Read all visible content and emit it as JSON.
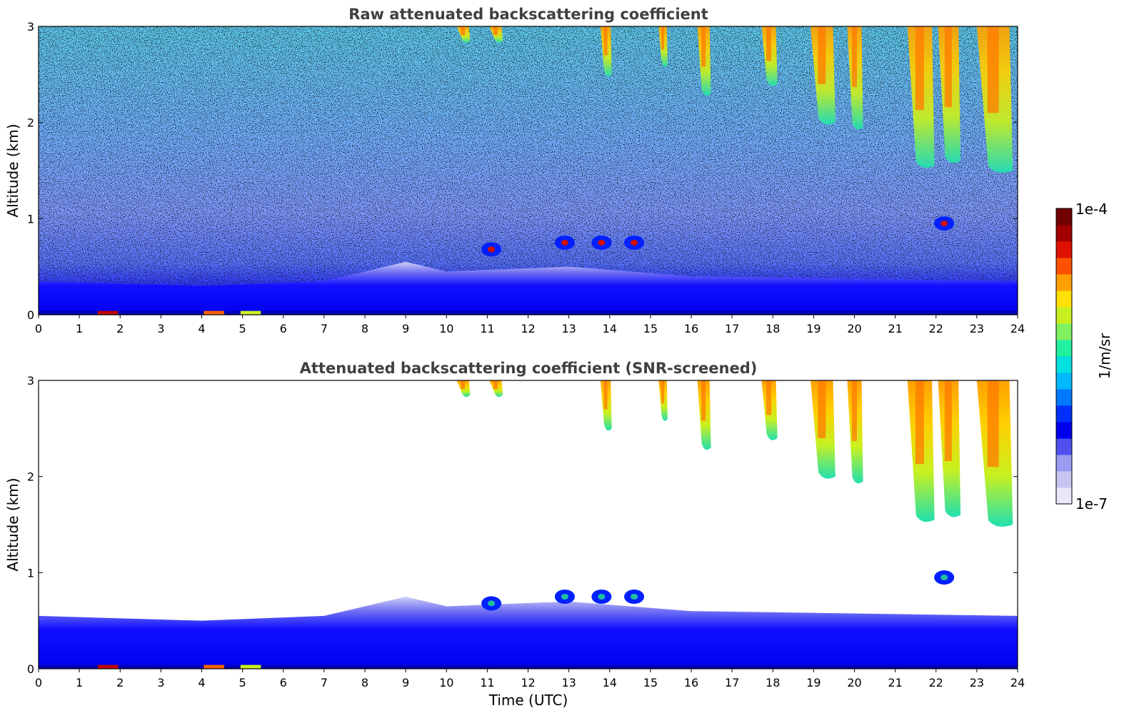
{
  "chart_data": [
    {
      "type": "heatmap",
      "title": "Raw attenuated backscattering coefficient",
      "xlabel": "",
      "ylabel": "Altitude (km)",
      "xlim": [
        0,
        24
      ],
      "ylim": [
        0,
        3
      ],
      "xticks": [
        "0",
        "1",
        "2",
        "3",
        "4",
        "5",
        "6",
        "7",
        "8",
        "9",
        "10",
        "11",
        "12",
        "13",
        "14",
        "15",
        "16",
        "17",
        "18",
        "19",
        "20",
        "21",
        "22",
        "23",
        "24"
      ],
      "yticks": [
        "0",
        "1",
        "2",
        "3"
      ],
      "features": {
        "boundary_layer": [
          {
            "t": 0,
            "top": 0.35
          },
          {
            "t": 4,
            "top": 0.3
          },
          {
            "t": 7,
            "top": 0.35
          },
          {
            "t": 8.5,
            "top": 0.5
          },
          {
            "t": 9,
            "top": 0.55
          },
          {
            "t": 10,
            "top": 0.45
          },
          {
            "t": 13,
            "top": 0.5
          },
          {
            "t": 16,
            "top": 0.4
          },
          {
            "t": 24,
            "top": 0.35
          }
        ],
        "fall_streaks": [
          {
            "t": 10.4,
            "top": 3,
            "bottom": 2.85,
            "w": 0.3
          },
          {
            "t": 11.2,
            "top": 3,
            "bottom": 2.85,
            "w": 0.3
          },
          {
            "t": 13.9,
            "top": 3,
            "bottom": 2.5,
            "w": 0.25
          },
          {
            "t": 15.3,
            "top": 3,
            "bottom": 2.6,
            "w": 0.2
          },
          {
            "t": 16.3,
            "top": 3,
            "bottom": 2.3,
            "w": 0.3
          },
          {
            "t": 17.9,
            "top": 3,
            "bottom": 2.4,
            "w": 0.35
          },
          {
            "t": 19.2,
            "top": 3,
            "bottom": 2.0,
            "w": 0.55
          },
          {
            "t": 20.0,
            "top": 3,
            "bottom": 1.95,
            "w": 0.35
          },
          {
            "t": 21.6,
            "top": 3,
            "bottom": 1.55,
            "w": 0.6
          },
          {
            "t": 22.3,
            "top": 3,
            "bottom": 1.6,
            "w": 0.5
          },
          {
            "t": 23.4,
            "top": 3,
            "bottom": 1.5,
            "w": 0.8
          }
        ],
        "low_cloud_cells": [
          {
            "t": 11.1,
            "alt": 0.68
          },
          {
            "t": 12.9,
            "alt": 0.75
          },
          {
            "t": 13.8,
            "alt": 0.75
          },
          {
            "t": 14.6,
            "alt": 0.75
          },
          {
            "t": 22.2,
            "alt": 0.95
          }
        ]
      }
    },
    {
      "type": "heatmap",
      "title": "Attenuated backscattering coefficient (SNR-screened)",
      "xlabel": "Time (UTC)",
      "ylabel": "Altitude (km)",
      "xlim": [
        0,
        24
      ],
      "ylim": [
        0,
        3
      ],
      "xticks": [
        "0",
        "1",
        "2",
        "3",
        "4",
        "5",
        "6",
        "7",
        "8",
        "9",
        "10",
        "11",
        "12",
        "13",
        "14",
        "15",
        "16",
        "17",
        "18",
        "19",
        "20",
        "21",
        "22",
        "23",
        "24"
      ],
      "yticks": [
        "0",
        "1",
        "2",
        "3"
      ]
    }
  ],
  "colorbar": {
    "label": "1/m/sr",
    "max_label": "1e-4",
    "min_label": "1e-7",
    "colors": [
      "#e8e8f8",
      "#c6c6f2",
      "#9a9af0",
      "#5050f0",
      "#0000ee",
      "#0030ff",
      "#0078ff",
      "#00b8ff",
      "#00e0e0",
      "#20f0a0",
      "#80f060",
      "#c8f020",
      "#ffe000",
      "#ffa000",
      "#ff5000",
      "#e01000",
      "#a00000",
      "#700000"
    ]
  }
}
